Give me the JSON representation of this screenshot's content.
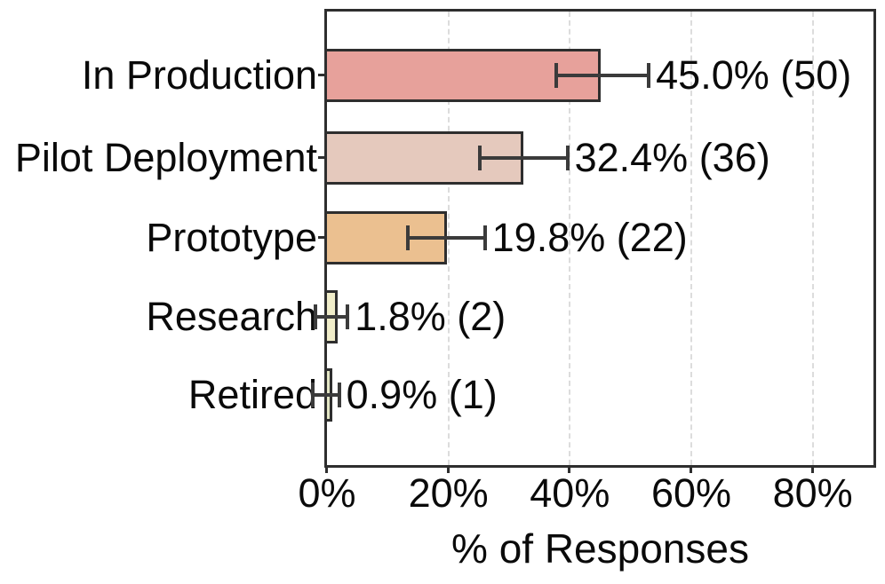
{
  "chart_data": {
    "type": "bar",
    "orientation": "horizontal",
    "xlabel": "% of Responses",
    "ylabel": "",
    "title": "",
    "xlim": [
      0,
      90
    ],
    "xticks": [
      0,
      20,
      40,
      60,
      80
    ],
    "xtick_labels": [
      "0%",
      "20%",
      "40%",
      "60%",
      "80%"
    ],
    "grid": "vertical-dashed-at-ticks",
    "legend": "none",
    "categories": [
      "In Production",
      "Pilot Deployment",
      "Prototype",
      "Research",
      "Retired"
    ],
    "values": [
      45.0,
      32.4,
      19.8,
      1.8,
      0.9
    ],
    "counts": [
      50,
      36,
      22,
      2,
      1
    ],
    "annotations": [
      "45.0% (50)",
      "32.4% (36)",
      "19.8% (22)",
      "1.8% (2)",
      "0.9% (1)"
    ],
    "error_low": [
      37.8,
      25.2,
      13.3,
      -1.9,
      -2.4
    ],
    "error_high": [
      53.0,
      39.6,
      26.0,
      3.4,
      2.0
    ],
    "bar_colors": [
      "#e7a19b",
      "#e5c9bd",
      "#ebc090",
      "#f0edc9",
      "#e3e6c4"
    ],
    "bar_edge_color": "#2e2e2e",
    "error_bar_color": "#3b3b3b",
    "gridline_color": "#dcdcdc",
    "text_color": "#0a0a0a"
  }
}
